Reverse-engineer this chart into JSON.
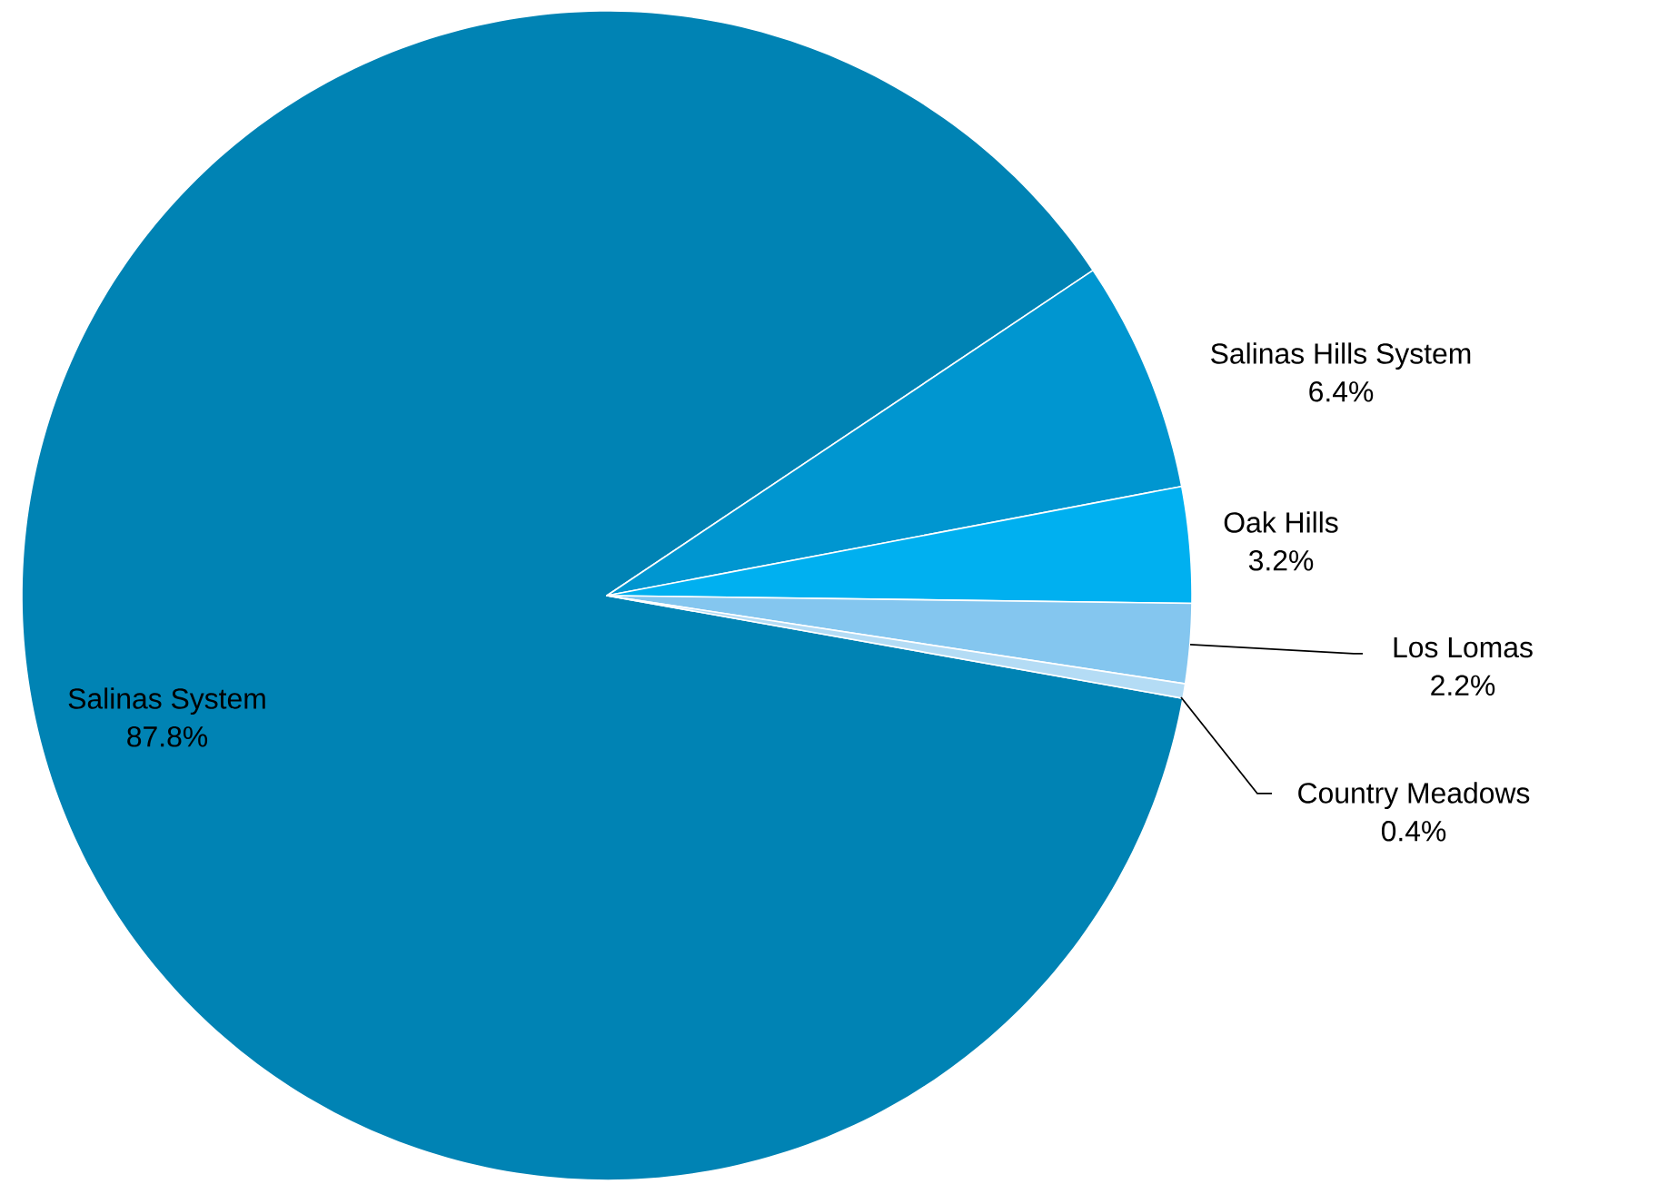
{
  "chart_data": {
    "type": "pie",
    "categories": [
      "Salinas System",
      "Salinas Hills System",
      "Oak Hills",
      "Los Lomas",
      "Country Meadows"
    ],
    "values": [
      87.8,
      6.4,
      3.2,
      2.2,
      0.4
    ],
    "value_labels": [
      "87.8%",
      "6.4%",
      "3.2%",
      "2.2%",
      "0.4%"
    ],
    "colors": [
      "#0083b4",
      "#0096d0",
      "#00b0f0",
      "#84c6ef",
      "#b4dcf5"
    ]
  }
}
